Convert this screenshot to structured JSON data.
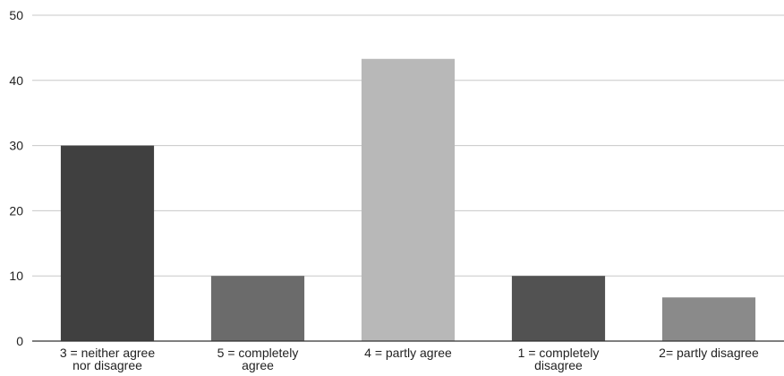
{
  "chart_data": {
    "type": "bar",
    "categories": [
      "3 = neither agree nor disagree",
      "5 = completely agree",
      "4 = partly agree",
      "1 = completely disagree",
      "2= partly disagree"
    ],
    "category_label_lines": [
      [
        "3 = neither agree",
        "nor disagree"
      ],
      [
        "5 = completely",
        "agree"
      ],
      [
        "4 = partly agree"
      ],
      [
        "1 = completely",
        "disagree"
      ],
      [
        "2= partly disagree"
      ]
    ],
    "values": [
      30,
      10,
      43.3,
      10,
      6.7
    ],
    "bar_colors": [
      "#404040",
      "#6b6b6b",
      "#b8b8b8",
      "#525252",
      "#8a8a8a"
    ],
    "ylim": [
      0,
      50
    ],
    "yticks": [
      0,
      10,
      20,
      30,
      40,
      50
    ],
    "grid": true,
    "legend": "none",
    "title": "",
    "xlabel": "",
    "ylabel": ""
  },
  "colors": {
    "gridline": "#c8c8c8",
    "axis": "#333333",
    "text": "#222222"
  }
}
